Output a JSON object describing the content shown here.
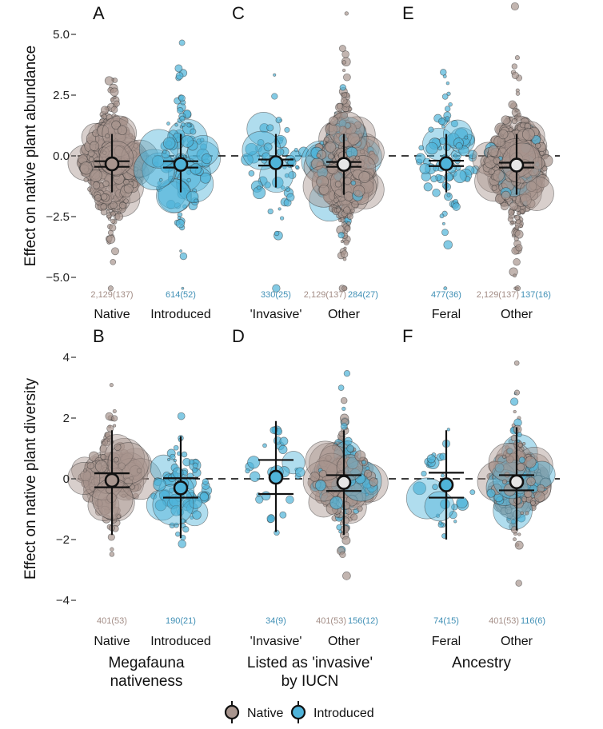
{
  "colors": {
    "native": "#a8958e",
    "introduced": "#4fb3d9",
    "native_text": "#a38d86",
    "introduced_text": "#3f8fb5",
    "summary_fill_mixed": "#e6e6e6",
    "zero_line": "#222222"
  },
  "chart_data": [
    {
      "type": "scatter",
      "subtype": "beeswarm-with-summary",
      "panel": "A",
      "ylabel": "Effect on native plant abundance",
      "ylim": [
        -5.6,
        6.5
      ],
      "yticks": [
        "5.0",
        "2.5",
        "0.0",
        "-2.5",
        "-5.0"
      ],
      "ytick_values": [
        5.0,
        2.5,
        0.0,
        -2.5,
        -5.0
      ],
      "xlabel": "Megafauna nativeness",
      "categories": [
        "Native",
        "Introduced"
      ],
      "groups": [
        {
          "category": "Native",
          "counts": [
            {
              "label": "2,129(137)",
              "series": "Native"
            }
          ],
          "mean": -0.33,
          "ci95": [
            -0.45,
            -0.22
          ],
          "pi": [
            -1.5,
            0.9
          ],
          "composition": "Native"
        },
        {
          "category": "Introduced",
          "counts": [
            {
              "label": "614(52)",
              "series": "Introduced"
            }
          ],
          "mean": -0.35,
          "ci95": [
            -0.48,
            -0.22
          ],
          "pi": [
            -1.5,
            0.9
          ],
          "composition": "Introduced"
        }
      ]
    },
    {
      "type": "scatter",
      "subtype": "beeswarm-with-summary",
      "panel": "C",
      "ylabel": "",
      "ylim": [
        -5.6,
        6.5
      ],
      "xlabel": "Listed as 'invasive' by IUCN",
      "categories": [
        "'Invasive'",
        "Other"
      ],
      "groups": [
        {
          "category": "'Invasive'",
          "counts": [
            {
              "label": "330(25)",
              "series": "Introduced"
            }
          ],
          "mean": -0.28,
          "ci95": [
            -0.4,
            -0.15
          ],
          "pi": [
            -1.3,
            0.9
          ],
          "composition": "Introduced"
        },
        {
          "category": "Other",
          "counts": [
            {
              "label": "2,129(137)",
              "series": "Native"
            },
            {
              "label": "284(27)",
              "series": "Introduced"
            }
          ],
          "mean": -0.35,
          "ci95": [
            -0.45,
            -0.25
          ],
          "pi": [
            -1.6,
            0.9
          ],
          "composition": "Mixed"
        }
      ]
    },
    {
      "type": "scatter",
      "subtype": "beeswarm-with-summary",
      "panel": "E",
      "ylabel": "",
      "ylim": [
        -5.6,
        6.5
      ],
      "xlabel": "Ancestry",
      "categories": [
        "Feral",
        "Other"
      ],
      "groups": [
        {
          "category": "Feral",
          "counts": [
            {
              "label": "477(36)",
              "series": "Introduced"
            }
          ],
          "mean": -0.32,
          "ci95": [
            -0.42,
            -0.2
          ],
          "pi": [
            -1.5,
            0.9
          ],
          "composition": "Introduced"
        },
        {
          "category": "Other",
          "counts": [
            {
              "label": "2,129(137)",
              "series": "Native"
            },
            {
              "label": "137(16)",
              "series": "Introduced"
            }
          ],
          "mean": -0.38,
          "ci95": [
            -0.48,
            -0.28
          ],
          "pi": [
            -1.6,
            0.9
          ],
          "composition": "Mixed"
        }
      ]
    },
    {
      "type": "scatter",
      "subtype": "beeswarm-with-summary",
      "panel": "B",
      "ylabel": "Effect on native plant diversity",
      "ylim": [
        -4.2,
        4.4
      ],
      "yticks": [
        "4",
        "2",
        "0",
        "-2",
        "-4"
      ],
      "ytick_values": [
        4,
        2,
        0,
        -2,
        -4
      ],
      "xlabel": "Megafauna nativeness",
      "categories": [
        "Native",
        "Introduced"
      ],
      "groups": [
        {
          "category": "Native",
          "counts": [
            {
              "label": "401(53)",
              "series": "Native"
            }
          ],
          "mean": -0.05,
          "ci95": [
            -0.28,
            0.18
          ],
          "pi": [
            -1.85,
            1.6
          ],
          "composition": "Native"
        },
        {
          "category": "Introduced",
          "counts": [
            {
              "label": "190(21)",
              "series": "Introduced"
            }
          ],
          "mean": -0.3,
          "ci95": [
            -0.62,
            0.02
          ],
          "pi": [
            -1.95,
            1.4
          ],
          "composition": "Introduced"
        }
      ]
    },
    {
      "type": "scatter",
      "subtype": "beeswarm-with-summary",
      "panel": "D",
      "ylabel": "",
      "ylim": [
        -4.2,
        4.4
      ],
      "xlabel": "Listed as 'invasive' by IUCN",
      "categories": [
        "'Invasive'",
        "Other"
      ],
      "groups": [
        {
          "category": "'Invasive'",
          "counts": [
            {
              "label": "34(9)",
              "series": "Introduced"
            }
          ],
          "mean": 0.05,
          "ci95": [
            -0.5,
            0.62
          ],
          "pi": [
            -1.75,
            1.9
          ],
          "composition": "Introduced"
        },
        {
          "category": "Other",
          "counts": [
            {
              "label": "401(53)",
              "series": "Native"
            },
            {
              "label": "156(12)",
              "series": "Introduced"
            }
          ],
          "mean": -0.12,
          "ci95": [
            -0.4,
            0.12
          ],
          "pi": [
            -1.85,
            1.6
          ],
          "composition": "Mixed"
        }
      ]
    },
    {
      "type": "scatter",
      "subtype": "beeswarm-with-summary",
      "panel": "F",
      "ylabel": "",
      "ylim": [
        -4.2,
        4.4
      ],
      "xlabel": "Ancestry",
      "categories": [
        "Feral",
        "Other"
      ],
      "groups": [
        {
          "category": "Feral",
          "counts": [
            {
              "label": "74(15)",
              "series": "Introduced"
            }
          ],
          "mean": -0.2,
          "ci95": [
            -0.62,
            0.2
          ],
          "pi": [
            -2.0,
            1.6
          ],
          "composition": "Introduced"
        },
        {
          "category": "Other",
          "counts": [
            {
              "label": "401(53)",
              "series": "Native"
            },
            {
              "label": "116(6)",
              "series": "Introduced"
            }
          ],
          "mean": -0.1,
          "ci95": [
            -0.38,
            0.12
          ],
          "pi": [
            -1.7,
            1.7
          ],
          "composition": "Mixed"
        }
      ]
    }
  ],
  "legend": {
    "position": "bottom",
    "items": [
      {
        "label": "Native",
        "series": "Native"
      },
      {
        "label": "Introduced",
        "series": "Introduced"
      }
    ]
  }
}
